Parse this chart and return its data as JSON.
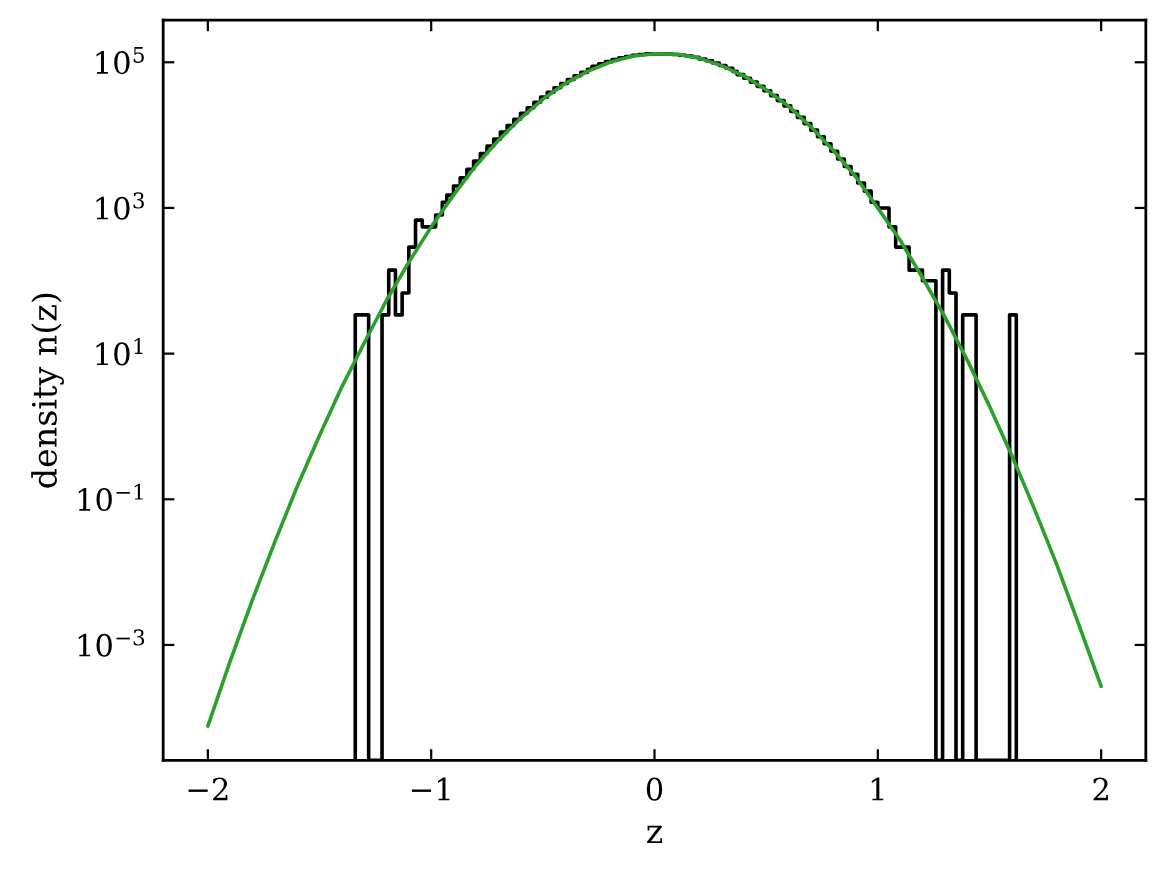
{
  "chart_data": {
    "type": "histogram",
    "log": "y",
    "xlabel": "z",
    "ylabel": "density n(z)",
    "xlim": [
      -2.2,
      2.2
    ],
    "ylim": [
      2.6e-05,
      380000
    ],
    "xticks": [
      {
        "value": -2,
        "label": "−2"
      },
      {
        "value": -1,
        "label": "−1"
      },
      0,
      1,
      2
    ],
    "yticks": [
      {
        "value": 0.001,
        "label": "10$^{−3}$"
      },
      {
        "value": 0.1,
        "label": "10$^{−1}$"
      },
      {
        "value": 10,
        "label": "10$^{1}$"
      },
      {
        "value": 1000,
        "label": "10$^{3}$"
      },
      {
        "value": 100000,
        "label": "10$^{5}$"
      }
    ],
    "series": [
      {
        "color": "#000000",
        "bins": [
          -1.34,
          -1.31,
          -1.28,
          -1.25,
          -1.22,
          -1.19,
          -1.16,
          -1.13,
          -1.1,
          -1.07,
          -1.04,
          -1.01,
          -0.98,
          -0.95,
          -0.93,
          -0.9,
          -0.87,
          -0.84,
          -0.81,
          -0.78,
          -0.75,
          -0.72,
          -0.69,
          -0.66,
          -0.63,
          -0.6,
          -0.57,
          -0.54,
          -0.51,
          -0.48,
          -0.45,
          -0.42,
          -0.39,
          -0.36,
          -0.33,
          -0.3,
          -0.28,
          -0.25,
          -0.22,
          -0.19,
          -0.16,
          -0.13,
          -0.1,
          -0.07,
          -0.04,
          -0.01,
          0.02,
          0.05,
          0.08,
          0.11,
          0.14,
          0.17,
          0.2,
          0.23,
          0.26,
          0.29,
          0.32,
          0.35,
          0.37,
          0.4,
          0.43,
          0.46,
          0.49,
          0.52,
          0.55,
          0.58,
          0.61,
          0.64,
          0.67,
          0.7,
          0.73,
          0.76,
          0.79,
          0.82,
          0.85,
          0.88,
          0.91,
          0.94,
          0.97,
          1.0,
          1.03,
          1.05,
          1.08,
          1.11,
          1.14,
          1.17,
          1.2,
          1.23,
          1.26,
          1.29,
          1.32,
          1.35,
          1.38,
          1.41,
          1.44,
          1.47,
          1.5,
          1.53,
          1.56,
          1.59,
          1.62
        ],
        "values": [
          34,
          34,
          null,
          null,
          34,
          140,
          34,
          68,
          290,
          680,
          550,
          550,
          800,
          1200,
          1500,
          2000,
          2600,
          3400,
          4400,
          5600,
          7100,
          8800,
          11000,
          13500,
          16500,
          19900,
          23800,
          28300,
          33200,
          38700,
          44700,
          51200,
          58100,
          65300,
          72700,
          80300,
          87900,
          95300,
          102000,
          109000,
          115000,
          120000,
          125000,
          128000,
          131000,
          132000,
          132000,
          130000,
          128000,
          125000,
          122000,
          117000,
          111000,
          105000,
          97600,
          90300,
          82700,
          75100,
          67600,
          60400,
          53400,
          46700,
          40600,
          34900,
          29800,
          25200,
          21100,
          17500,
          14400,
          11700,
          9500,
          7600,
          6000,
          4700,
          3700,
          2900,
          2200,
          1700,
          1200,
          1000,
          1000,
          550,
          290,
          290,
          140,
          140,
          100,
          100,
          null,
          140,
          68,
          null,
          34,
          34,
          null,
          null,
          null,
          null,
          null,
          34
        ]
      },
      {
        "type": "line",
        "color": "#2ca02c",
        "x": [
          -2.0,
          -1.9,
          -1.8,
          -1.7,
          -1.6,
          -1.5,
          -1.4,
          -1.3,
          -1.2,
          -1.1,
          -1.0,
          -0.9,
          -0.8,
          -0.7,
          -0.6,
          -0.5,
          -0.4,
          -0.3,
          -0.2,
          -0.1,
          0.0,
          0.1,
          0.2,
          0.3,
          0.4,
          0.5,
          0.6,
          0.7,
          0.8,
          0.9,
          1.0,
          1.1,
          1.2,
          1.3,
          1.4,
          1.5,
          1.6,
          1.7,
          1.8,
          1.9,
          2.0
        ],
        "values": [
          7.7e-05,
          0.0006,
          0.0042,
          0.026,
          0.15,
          0.75,
          3.5,
          14,
          54,
          180,
          550,
          1500,
          3800,
          8400,
          17000,
          31000,
          51000,
          75000,
          100000,
          121000,
          131000,
          129000,
          114000,
          90000,
          65000,
          42000,
          25000,
          13000,
          6200,
          2700,
          1000,
          360,
          110,
          32,
          8.2,
          1.9,
          0.4,
          0.075,
          0.013,
          0.0019,
          0.00027
        ]
      }
    ]
  }
}
